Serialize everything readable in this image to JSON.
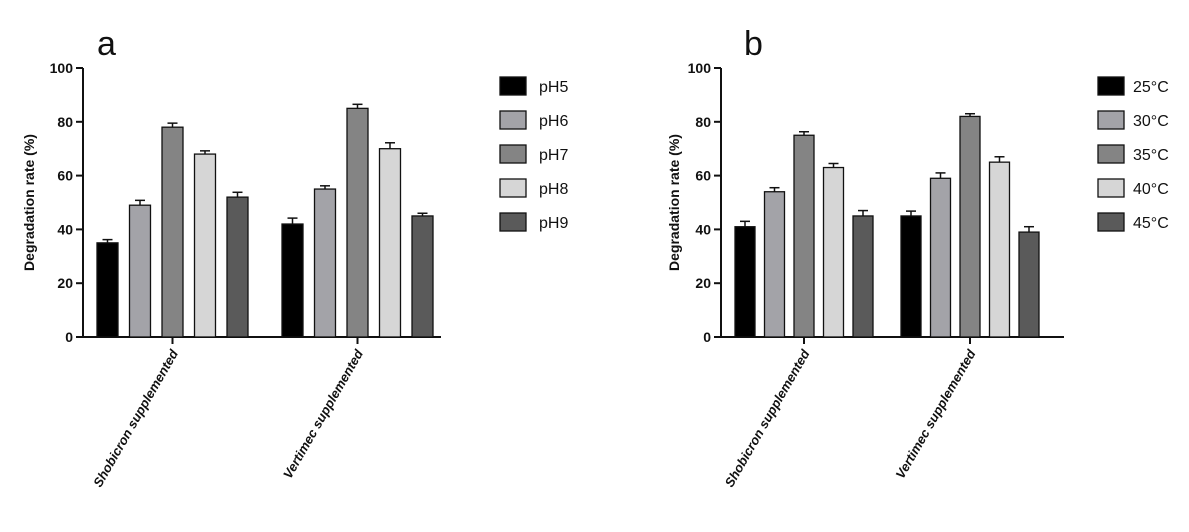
{
  "chart_data": [
    {
      "type": "bar",
      "panel_label": "a",
      "ylabel": "Degradation rate (%)",
      "ylim": [
        0,
        100
      ],
      "yticks": [
        0,
        20,
        40,
        60,
        80,
        100
      ],
      "categories": [
        "Shobicron supplemented",
        "Vertimec supplemented"
      ],
      "legend_position": "right",
      "series": [
        {
          "name": "pH5",
          "color": "#000000",
          "values": [
            35,
            42
          ],
          "errors": [
            1.2,
            2.2
          ]
        },
        {
          "name": "pH6",
          "color": "#a3a3a8",
          "values": [
            49,
            55
          ],
          "errors": [
            1.8,
            1.2
          ]
        },
        {
          "name": "pH7",
          "color": "#848484",
          "values": [
            78,
            85
          ],
          "errors": [
            1.5,
            1.5
          ]
        },
        {
          "name": "pH8",
          "color": "#d6d6d6",
          "values": [
            68,
            70
          ],
          "errors": [
            1.2,
            2.2
          ]
        },
        {
          "name": "pH9",
          "color": "#5a5a5a",
          "values": [
            52,
            45
          ],
          "errors": [
            1.8,
            1.0
          ]
        }
      ]
    },
    {
      "type": "bar",
      "panel_label": "b",
      "ylabel": "Degradation rate (%)",
      "ylim": [
        0,
        100
      ],
      "yticks": [
        0,
        20,
        40,
        60,
        80,
        100
      ],
      "categories": [
        "Shobicron supplemented",
        "Vertimec supplemented"
      ],
      "legend_position": "right",
      "series": [
        {
          "name": "25°C",
          "color": "#000000",
          "values": [
            41,
            45
          ],
          "errors": [
            2.0,
            1.8
          ]
        },
        {
          "name": "30°C",
          "color": "#a3a3a8",
          "values": [
            54,
            59
          ],
          "errors": [
            1.5,
            2.0
          ]
        },
        {
          "name": "35°C",
          "color": "#848484",
          "values": [
            75,
            82
          ],
          "errors": [
            1.3,
            1.0
          ]
        },
        {
          "name": "40°C",
          "color": "#d6d6d6",
          "values": [
            63,
            65
          ],
          "errors": [
            1.5,
            2.0
          ]
        },
        {
          "name": "45°C",
          "color": "#5a5a5a",
          "values": [
            45,
            39
          ],
          "errors": [
            2.0,
            2.0
          ]
        }
      ]
    }
  ]
}
